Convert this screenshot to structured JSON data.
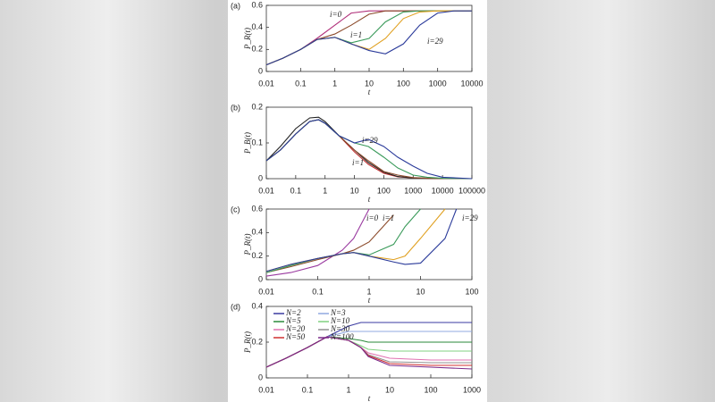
{
  "chart_data": [
    {
      "type": "line",
      "panel": "(a)",
      "xlabel": "t",
      "ylabel": "P_R(t)",
      "xlog": true,
      "xlim": [
        0.01,
        10000
      ],
      "xticks": [
        0.01,
        0.1,
        1,
        10,
        100,
        1000,
        10000
      ],
      "ylim": [
        0,
        0.6
      ],
      "yticks": [
        0,
        0.2,
        0.4,
        0.6
      ],
      "annotations": [
        "i=0",
        "i=1",
        "i=29"
      ],
      "x": [
        0.01,
        0.03,
        0.1,
        0.3,
        1,
        3,
        10,
        30,
        100,
        300,
        1000,
        3000,
        10000
      ],
      "series": [
        {
          "color": "#b0307a",
          "values": [
            0.06,
            0.12,
            0.2,
            0.3,
            0.42,
            0.53,
            0.55,
            0.55,
            0.55,
            0.55,
            0.55,
            0.55,
            0.55
          ]
        },
        {
          "color": "#8b4a2a",
          "values": [
            0.06,
            0.12,
            0.2,
            0.29,
            0.34,
            0.42,
            0.52,
            0.55,
            0.55,
            0.55,
            0.55,
            0.55,
            0.55
          ]
        },
        {
          "color": "#3a9a5a",
          "values": [
            0.06,
            0.12,
            0.2,
            0.29,
            0.31,
            0.26,
            0.3,
            0.45,
            0.54,
            0.55,
            0.55,
            0.55,
            0.55
          ]
        },
        {
          "color": "#e0a020",
          "values": [
            0.06,
            0.12,
            0.2,
            0.29,
            0.31,
            0.25,
            0.2,
            0.3,
            0.48,
            0.54,
            0.55,
            0.55,
            0.55
          ]
        },
        {
          "color": "#2a3a9a",
          "values": [
            0.06,
            0.12,
            0.2,
            0.29,
            0.31,
            0.25,
            0.19,
            0.16,
            0.25,
            0.42,
            0.53,
            0.55,
            0.55
          ]
        }
      ]
    },
    {
      "type": "line",
      "panel": "(b)",
      "xlabel": "t",
      "ylabel": "P_B(t)",
      "xlog": true,
      "xlim": [
        0.01,
        100000
      ],
      "xticks": [
        0.01,
        0.1,
        1,
        10,
        100,
        1000,
        10000,
        100000
      ],
      "ylim": [
        0,
        0.2
      ],
      "yticks": [
        0,
        0.1,
        0.2
      ],
      "annotations": [
        "i=29",
        "i=1"
      ],
      "x": [
        0.01,
        0.03,
        0.1,
        0.3,
        0.6,
        1,
        3,
        10,
        30,
        100,
        300,
        1000,
        3000,
        10000,
        100000
      ],
      "series": [
        {
          "color": "#c03030",
          "values": [
            0.05,
            0.08,
            0.125,
            0.16,
            0.165,
            0.155,
            0.12,
            0.075,
            0.04,
            0.015,
            0.005,
            0.002,
            0.001,
            0,
            0
          ]
        },
        {
          "color": "#222222",
          "values": [
            0.05,
            0.09,
            0.14,
            0.17,
            0.172,
            0.16,
            0.12,
            0.08,
            0.045,
            0.018,
            0.006,
            0.002,
            0.001,
            0,
            0
          ]
        },
        {
          "color": "#8b4a2a",
          "values": [
            0.05,
            0.08,
            0.125,
            0.16,
            0.165,
            0.155,
            0.12,
            0.08,
            0.05,
            0.02,
            0.01,
            0.003,
            0.001,
            0,
            0
          ]
        },
        {
          "color": "#3a9a5a",
          "values": [
            0.05,
            0.08,
            0.125,
            0.16,
            0.165,
            0.155,
            0.12,
            0.1,
            0.09,
            0.06,
            0.03,
            0.01,
            0.004,
            0.001,
            0
          ]
        },
        {
          "color": "#2a3a9a",
          "values": [
            0.05,
            0.08,
            0.125,
            0.16,
            0.165,
            0.155,
            0.12,
            0.1,
            0.11,
            0.09,
            0.06,
            0.035,
            0.015,
            0.004,
            0
          ]
        }
      ]
    },
    {
      "type": "line",
      "panel": "(c)",
      "xlabel": "t",
      "ylabel": "P_R(t)",
      "xlog": true,
      "xlim": [
        0.01,
        100
      ],
      "xticks": [
        0.01,
        0.1,
        1,
        10,
        100
      ],
      "ylim": [
        0,
        0.6
      ],
      "yticks": [
        0,
        0.2,
        0.4,
        0.6
      ],
      "annotations": [
        "i=0",
        "i=1",
        "i=29"
      ],
      "x": [
        0.01,
        0.03,
        0.1,
        0.3,
        0.5,
        1,
        3,
        5,
        10,
        30,
        50,
        100
      ],
      "series": [
        {
          "color": "#9a3aa0",
          "values": [
            0.03,
            0.06,
            0.12,
            0.25,
            0.35,
            0.6,
            null,
            null,
            null,
            null,
            null,
            null
          ]
        },
        {
          "color": "#8b4a2a",
          "values": [
            0.06,
            0.11,
            0.17,
            0.22,
            0.25,
            0.32,
            0.55,
            null,
            null,
            null,
            null,
            null
          ]
        },
        {
          "color": "#3a9a5a",
          "values": [
            0.06,
            0.12,
            0.18,
            0.22,
            0.23,
            0.21,
            0.3,
            0.45,
            0.6,
            null,
            null,
            null
          ]
        },
        {
          "color": "#e0a020",
          "values": [
            0.07,
            0.13,
            0.18,
            0.22,
            0.23,
            0.2,
            0.17,
            0.2,
            0.35,
            0.6,
            null,
            null
          ]
        },
        {
          "color": "#2a3a9a",
          "values": [
            0.07,
            0.13,
            0.18,
            0.22,
            0.23,
            0.2,
            0.15,
            0.13,
            0.14,
            0.35,
            0.6,
            null
          ]
        }
      ]
    },
    {
      "type": "line",
      "panel": "(d)",
      "xlabel": "t",
      "ylabel": "P_R(t)",
      "xlog": true,
      "xlim": [
        0.01,
        1000
      ],
      "xticks": [
        0.01,
        0.1,
        1,
        10,
        100,
        1000
      ],
      "ylim": [
        0,
        0.4
      ],
      "yticks": [
        0,
        0.2,
        0.4
      ],
      "x": [
        0.01,
        0.03,
        0.1,
        0.3,
        1,
        2,
        3,
        10,
        100,
        1000
      ],
      "series": [
        {
          "name": "N=2",
          "color": "#3a3aa0",
          "values": [
            0.06,
            0.11,
            0.17,
            0.23,
            0.29,
            0.31,
            0.31,
            0.31,
            0.31,
            0.31
          ]
        },
        {
          "name": "N=3",
          "color": "#90a8e0",
          "values": [
            0.06,
            0.11,
            0.17,
            0.23,
            0.26,
            0.26,
            0.26,
            0.26,
            0.26,
            0.26
          ]
        },
        {
          "name": "N=5",
          "color": "#2a8a3a",
          "values": [
            0.06,
            0.11,
            0.17,
            0.23,
            0.22,
            0.21,
            0.2,
            0.2,
            0.2,
            0.2
          ]
        },
        {
          "name": "N=10",
          "color": "#80d080",
          "values": [
            0.06,
            0.11,
            0.17,
            0.23,
            0.21,
            0.18,
            0.16,
            0.15,
            0.15,
            0.15
          ]
        },
        {
          "name": "N=20",
          "color": "#e070b0",
          "values": [
            0.06,
            0.11,
            0.17,
            0.23,
            0.21,
            0.17,
            0.14,
            0.11,
            0.1,
            0.1
          ]
        },
        {
          "name": "N=30",
          "color": "#909090",
          "values": [
            0.06,
            0.11,
            0.17,
            0.23,
            0.21,
            0.17,
            0.13,
            0.09,
            0.085,
            0.085
          ]
        },
        {
          "name": "N=50",
          "color": "#d03030",
          "values": [
            0.06,
            0.11,
            0.17,
            0.23,
            0.21,
            0.17,
            0.125,
            0.08,
            0.07,
            0.07
          ]
        },
        {
          "name": "N=100",
          "color": "#7a2a8a",
          "values": [
            0.06,
            0.11,
            0.17,
            0.23,
            0.21,
            0.17,
            0.12,
            0.07,
            0.06,
            0.05
          ]
        }
      ]
    }
  ]
}
